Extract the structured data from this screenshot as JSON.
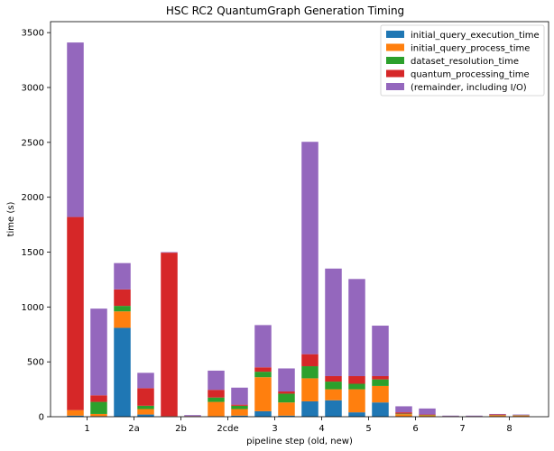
{
  "chart_data": {
    "type": "bar",
    "stacked": true,
    "title": "HSC RC2 QuantumGraph Generation Timing",
    "xlabel": "pipeline step (old, new)",
    "ylabel": "time (s)",
    "ylim": [
      0,
      3600
    ],
    "yticks": [
      0,
      500,
      1000,
      1500,
      2000,
      2500,
      3000,
      3500
    ],
    "xticks": [
      {
        "label": "1",
        "at": 0
      },
      {
        "label": "2a",
        "at": 1
      },
      {
        "label": "2b",
        "at": 2
      },
      {
        "label": "2cde",
        "at": 3
      },
      {
        "label": "3",
        "at": 4
      },
      {
        "label": "4",
        "at": 5
      },
      {
        "label": "5",
        "at": 6
      },
      {
        "label": "6",
        "at": 7
      },
      {
        "label": "7",
        "at": 8
      },
      {
        "label": "8",
        "at": 9
      }
    ],
    "group_variants": [
      "old",
      "new"
    ],
    "legend_position": "top-right",
    "grid": false,
    "categories": [
      "1 old",
      "1 new",
      "2a old",
      "2a new",
      "2b old",
      "2b new",
      "2cde old",
      "2cde new",
      "3 old",
      "3 new",
      "4 old",
      "4 new",
      "5 old",
      "5 new",
      "6 old",
      "6 new",
      "7 old",
      "7 new",
      "8 old",
      "8 new"
    ],
    "series": [
      {
        "name": "initial_query_execution_time",
        "color": "#1f77b4",
        "values": [
          10,
          5,
          810,
          20,
          2,
          2,
          5,
          10,
          50,
          10,
          140,
          150,
          40,
          130,
          3,
          3,
          2,
          2,
          3,
          3
        ]
      },
      {
        "name": "initial_query_process_time",
        "color": "#ff7f0e",
        "values": [
          50,
          20,
          150,
          50,
          3,
          2,
          130,
          60,
          310,
          120,
          210,
          100,
          210,
          150,
          20,
          10,
          2,
          2,
          10,
          8
        ]
      },
      {
        "name": "dataset_resolution_time",
        "color": "#2ca02c",
        "values": [
          0,
          110,
          50,
          30,
          0,
          0,
          40,
          30,
          50,
          80,
          110,
          70,
          50,
          60,
          5,
          3,
          0,
          0,
          2,
          2
        ]
      },
      {
        "name": "quantum_processing_time",
        "color": "#d62728",
        "values": [
          1760,
          60,
          150,
          160,
          1490,
          2,
          70,
          10,
          40,
          20,
          110,
          50,
          70,
          30,
          12,
          4,
          1,
          1,
          5,
          2
        ]
      },
      {
        "name": "(remainder, including I/O)",
        "color": "#9467bd",
        "values": [
          1590,
          790,
          240,
          140,
          5,
          9,
          175,
          155,
          385,
          210,
          1935,
          980,
          885,
          460,
          55,
          55,
          5,
          5,
          5,
          5
        ]
      }
    ]
  }
}
